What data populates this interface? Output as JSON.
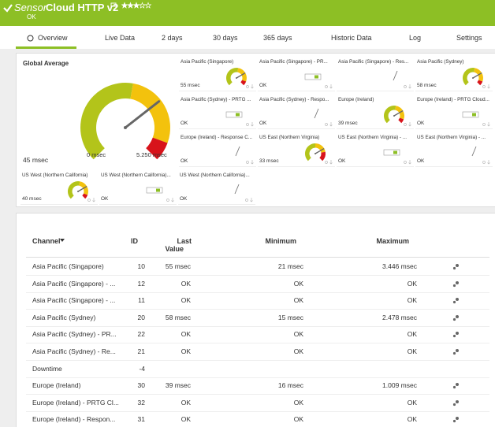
{
  "header": {
    "prefix": "Sensor",
    "title": "Cloud HTTP v2",
    "status": "OK"
  },
  "tabs": [
    "Overview",
    "Live Data",
    "2 days",
    "30 days",
    "365 days",
    "Historic Data",
    "Log",
    "Settings"
  ],
  "global_average": {
    "title": "Global Average",
    "value": "45 msec",
    "min_label": "0 msec",
    "max_label": "5.250 msec"
  },
  "gauges": [
    {
      "label": "Asia Pacific (Singapore)",
      "value": "55 msec",
      "kind": "gauge"
    },
    {
      "label": "Asia Pacific (Singapore) - PR...",
      "value": "OK",
      "kind": "bar"
    },
    {
      "label": "Asia Pacific (Singapore) - Res...",
      "kind": "needle"
    },
    {
      "label": "Asia Pacific (Sydney)",
      "value": "58 msec",
      "kind": "gauge"
    },
    {
      "label": "Asia Pacific (Sydney) - PRTG ...",
      "value": "OK",
      "kind": "bar"
    },
    {
      "label": "Asia Pacific (Sydney) - Respo...",
      "value": "OK",
      "kind": "needle"
    },
    {
      "label": "Europe (Ireland)",
      "value": "39 msec",
      "kind": "gauge"
    },
    {
      "label": "Europe (Ireland) - PRTG Cloud...",
      "value": "OK",
      "kind": "bar"
    },
    {
      "label": "Europe (Ireland) - Response C...",
      "value": "OK",
      "kind": "needle"
    },
    {
      "label": "US East (Northern Virginia)",
      "value": "33 msec",
      "kind": "gauge-red"
    },
    {
      "label": "US East (Northern Virginia) - ...",
      "value": "OK",
      "kind": "bar"
    },
    {
      "label": "US East (Northern Virginia) - ...",
      "value": "OK",
      "kind": "needle"
    },
    {
      "label": "US West (Northern California)",
      "value": "40 msec",
      "kind": "gauge"
    },
    {
      "label": "US West (Northern California)...",
      "value": "OK",
      "kind": "bar"
    },
    {
      "label": "US West (Northern California)...",
      "value": "OK",
      "kind": "needle"
    }
  ],
  "table": {
    "columns": {
      "channel": "Channel",
      "id": "ID",
      "last": "Last",
      "last2": "Value",
      "min": "Minimum",
      "max": "Maximum"
    },
    "rows": [
      {
        "channel": "Asia Pacific (Singapore)",
        "id": 10,
        "last": "55 msec",
        "min": "21 msec",
        "max": "3.446 msec"
      },
      {
        "channel": "Asia Pacific (Singapore) - ...",
        "id": 12,
        "last": "OK",
        "min": "OK",
        "max": "OK"
      },
      {
        "channel": "Asia Pacific (Singapore) - ...",
        "id": 11,
        "last": "OK",
        "min": "OK",
        "max": "OK"
      },
      {
        "channel": "Asia Pacific (Sydney)",
        "id": 20,
        "last": "58 msec",
        "min": "15 msec",
        "max": "2.478 msec"
      },
      {
        "channel": "Asia Pacific (Sydney) - PR...",
        "id": 22,
        "last": "OK",
        "min": "OK",
        "max": "OK"
      },
      {
        "channel": "Asia Pacific (Sydney) - Re...",
        "id": 21,
        "last": "OK",
        "min": "OK",
        "max": "OK"
      },
      {
        "channel": "Downtime",
        "id": -4
      },
      {
        "channel": "Europe (Ireland)",
        "id": 30,
        "last": "39 msec",
        "min": "16 msec",
        "max": "1.009 msec"
      },
      {
        "channel": "Europe (Ireland) - PRTG Cl...",
        "id": 32,
        "last": "OK",
        "min": "OK",
        "max": "OK"
      },
      {
        "channel": "Europe (Ireland) - Respon...",
        "id": 31,
        "last": "OK",
        "min": "OK",
        "max": "OK"
      }
    ]
  }
}
